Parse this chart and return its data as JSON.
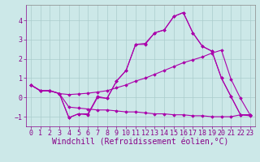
{
  "background_color": "#cce8e8",
  "grid_color": "#aacccc",
  "line_color": "#aa00aa",
  "xlim": [
    -0.5,
    23.5
  ],
  "ylim": [
    -1.5,
    4.8
  ],
  "yticks": [
    -1,
    0,
    1,
    2,
    3,
    4
  ],
  "xticks": [
    0,
    1,
    2,
    3,
    4,
    5,
    6,
    7,
    8,
    9,
    10,
    11,
    12,
    13,
    14,
    15,
    16,
    17,
    18,
    19,
    20,
    21,
    22,
    23
  ],
  "xlabel": "Windchill (Refroidissement éolien,°C)",
  "series": [
    [
      0.65,
      0.35,
      0.35,
      0.2,
      -1.05,
      -0.85,
      -0.85,
      0.05,
      -0.05,
      0.85,
      1.4,
      2.75,
      2.75,
      3.35,
      3.5,
      4.2,
      4.4,
      3.35,
      2.65,
      2.4,
      1.0,
      0.05,
      -0.9,
      -0.95
    ],
    [
      0.65,
      0.35,
      0.35,
      0.2,
      -1.05,
      -0.85,
      -0.9,
      0.0,
      -0.05,
      0.85,
      1.4,
      2.75,
      2.8,
      3.35,
      3.5,
      4.2,
      4.4,
      3.35,
      2.65,
      2.4,
      1.0,
      0.05,
      -0.9,
      -0.9
    ],
    [
      0.65,
      0.35,
      0.35,
      0.2,
      -0.5,
      -0.55,
      -0.6,
      -0.65,
      -0.65,
      -0.7,
      -0.75,
      -0.75,
      -0.8,
      -0.85,
      -0.85,
      -0.9,
      -0.9,
      -0.95,
      -0.95,
      -1.0,
      -1.0,
      -1.0,
      -0.9,
      -0.9
    ],
    [
      0.65,
      0.35,
      0.35,
      0.2,
      0.15,
      0.18,
      0.22,
      0.28,
      0.35,
      0.5,
      0.65,
      0.85,
      1.0,
      1.2,
      1.4,
      1.6,
      1.8,
      1.95,
      2.1,
      2.3,
      2.45,
      0.95,
      -0.05,
      -0.9
    ]
  ],
  "tick_fontsize": 6,
  "xlabel_fontsize": 7,
  "linewidth": 0.8,
  "marker": "D",
  "markersize": 1.8
}
